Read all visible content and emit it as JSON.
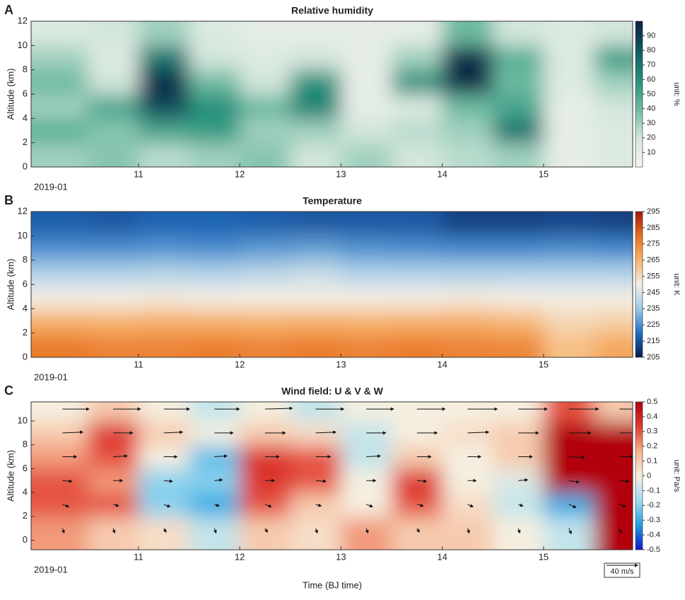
{
  "chart_data": [
    {
      "type": "heatmap",
      "panel": "A",
      "title": "Relative humidity",
      "y_label": "Altitude (km)",
      "date_label": "2019-01",
      "colorbar_label": "unit: %",
      "x": [
        10.25,
        10.75,
        11.25,
        11.75,
        12.25,
        12.75,
        13.25,
        13.75,
        14.25,
        14.75,
        15.25,
        15.75
      ],
      "y": [
        1,
        3,
        5,
        7,
        9,
        11
      ],
      "z": [
        [
          30,
          35,
          25,
          30,
          35,
          20,
          30,
          20,
          25,
          30,
          10,
          15
        ],
        [
          45,
          35,
          50,
          55,
          30,
          30,
          20,
          25,
          30,
          70,
          10,
          15
        ],
        [
          30,
          50,
          85,
          60,
          40,
          65,
          10,
          15,
          40,
          50,
          10,
          20
        ],
        [
          40,
          20,
          95,
          40,
          20,
          60,
          10,
          60,
          95,
          40,
          15,
          30
        ],
        [
          30,
          15,
          70,
          20,
          15,
          20,
          10,
          30,
          95,
          45,
          15,
          55
        ],
        [
          15,
          20,
          30,
          15,
          10,
          10,
          10,
          10,
          40,
          20,
          15,
          20
        ]
      ],
      "colorscale": [
        "#f6f4ef",
        "#d3e6dc",
        "#6cbaa0",
        "#23907b",
        "#0f5a62",
        "#0a1f42"
      ],
      "clim": [
        0,
        100
      ],
      "cticks": [
        10,
        20,
        30,
        40,
        50,
        60,
        70,
        80,
        90
      ],
      "xlim": [
        9.94,
        15.88
      ],
      "xticks": [
        11,
        12,
        13,
        14,
        15
      ],
      "ylim": [
        0,
        12
      ],
      "yticks": [
        0,
        2,
        4,
        6,
        8,
        10,
        12
      ]
    },
    {
      "type": "heatmap",
      "panel": "B",
      "title": "Temperature",
      "y_label": "Altitude (km)",
      "date_label": "2019-01",
      "colorbar_label": "unit: K",
      "x": [
        10.25,
        10.75,
        11.25,
        11.75,
        12.25,
        12.75,
        13.25,
        13.75,
        14.25,
        14.75,
        15.25,
        15.75
      ],
      "y": [
        1,
        3,
        5,
        7,
        9,
        11
      ],
      "z": [
        [
          278,
          276,
          276,
          277,
          276,
          277,
          276,
          277,
          276,
          275,
          262,
          268
        ],
        [
          266,
          265,
          266,
          266,
          265,
          266,
          265,
          266,
          266,
          264,
          256,
          258
        ],
        [
          250,
          250,
          251,
          250,
          250,
          250,
          250,
          250,
          251,
          250,
          250,
          250
        ],
        [
          238,
          238,
          239,
          238,
          240,
          242,
          238,
          238,
          238,
          238,
          238,
          238
        ],
        [
          225,
          225,
          226,
          225,
          227,
          228,
          226,
          225,
          224,
          224,
          225,
          224
        ],
        [
          217,
          216,
          218,
          218,
          217,
          216,
          216,
          216,
          212,
          212,
          213,
          212
        ]
      ],
      "colorscale": [
        "#0b1a4c",
        "#1f6fc2",
        "#9ccae8",
        "#f3efe6",
        "#f7b46c",
        "#e8711f",
        "#a3140f"
      ],
      "clim": [
        205,
        295
      ],
      "cticks": [
        205,
        215,
        225,
        235,
        245,
        255,
        265,
        275,
        285,
        295
      ],
      "xlim": [
        9.94,
        15.88
      ],
      "xticks": [
        11,
        12,
        13,
        14,
        15
      ],
      "ylim": [
        0,
        12
      ],
      "yticks": [
        0,
        2,
        4,
        6,
        8,
        10,
        12
      ]
    },
    {
      "type": "heatmap",
      "panel": "C",
      "title": "Wind field: U & V & W",
      "y_label": "Altitude (km)",
      "x_label": "Time (BJ time)",
      "date_label": "2019-01",
      "colorbar_label": "unit: Pa/s",
      "x": [
        10.25,
        10.75,
        11.25,
        11.75,
        12.25,
        12.75,
        13.25,
        13.75,
        14.25,
        14.75,
        15.25,
        15.75
      ],
      "y": [
        1,
        3,
        5,
        7,
        9,
        11
      ],
      "z": [
        [
          0.2,
          0.1,
          0.05,
          -0.1,
          0.1,
          0.05,
          0.2,
          0.1,
          0.1,
          0,
          -0.1,
          0.5
        ],
        [
          0.3,
          0.3,
          -0.2,
          -0.3,
          0.3,
          0.1,
          0,
          0.3,
          0.05,
          -0.1,
          -0.3,
          0.5
        ],
        [
          0.3,
          0.2,
          -0.2,
          -0.2,
          0.35,
          0.3,
          0,
          0.35,
          0,
          -0.05,
          0.5,
          0.5
        ],
        [
          0.2,
          0.3,
          0,
          -0.25,
          0.35,
          0.3,
          -0.1,
          0.1,
          0,
          0.1,
          0.5,
          0.5
        ],
        [
          0.1,
          0.35,
          0.1,
          0,
          0.1,
          0.05,
          -0.1,
          0,
          0.05,
          0.1,
          0.5,
          0.5
        ],
        [
          0,
          0.1,
          0,
          -0.1,
          0,
          -0.1,
          0,
          0,
          0,
          0,
          0.3,
          0.1
        ]
      ],
      "u": [
        [
          2,
          2,
          3,
          2,
          3,
          2,
          2,
          3,
          2,
          2,
          3,
          2
        ],
        [
          8,
          7,
          8,
          6,
          8,
          7,
          8,
          8,
          7,
          6,
          9,
          8
        ],
        [
          12,
          12,
          11,
          10,
          12,
          13,
          12,
          12,
          11,
          12,
          13,
          12
        ],
        [
          18,
          18,
          17,
          16,
          18,
          19,
          18,
          18,
          17,
          18,
          20,
          18
        ],
        [
          26,
          25,
          24,
          24,
          26,
          26,
          25,
          26,
          27,
          26,
          28,
          26
        ],
        [
          34,
          35,
          33,
          32,
          35,
          36,
          35,
          36,
          38,
          37,
          38,
          36
        ]
      ],
      "v": [
        [
          -6,
          -6,
          -5,
          -6,
          -5,
          -6,
          -6,
          -5,
          -6,
          -6,
          -7,
          -6
        ],
        [
          -3,
          -2,
          -3,
          -2,
          -3,
          -2,
          -3,
          -2,
          -3,
          -2,
          -4,
          -3
        ],
        [
          -1,
          0,
          -1,
          1,
          0,
          -1,
          0,
          -1,
          0,
          1,
          -2,
          -1
        ],
        [
          0,
          1,
          0,
          1,
          0,
          0,
          1,
          0,
          0,
          0,
          -1,
          0
        ],
        [
          1,
          0,
          1,
          0,
          0,
          1,
          0,
          0,
          1,
          0,
          0,
          0
        ],
        [
          0,
          0,
          0,
          0,
          1,
          0,
          0,
          0,
          0,
          0,
          0,
          0
        ]
      ],
      "wind_scale": {
        "value": 40,
        "label": "40 m/s"
      },
      "colorscale": [
        "#1414cc",
        "#1fa0e2",
        "#a2dcf0",
        "#f5efe0",
        "#f7b28c",
        "#e03a30",
        "#b3000e"
      ],
      "clim": [
        -0.5,
        0.5
      ],
      "cticks": [
        -0.5,
        -0.4,
        -0.3,
        -0.2,
        -0.1,
        0,
        0.1,
        0.2,
        0.3,
        0.4,
        0.5
      ],
      "xlim": [
        9.94,
        15.88
      ],
      "xticks": [
        11,
        12,
        13,
        14,
        15
      ],
      "ylim": [
        -0.8,
        11.6
      ],
      "yticks": [
        0,
        2,
        4,
        6,
        8,
        10
      ]
    }
  ]
}
